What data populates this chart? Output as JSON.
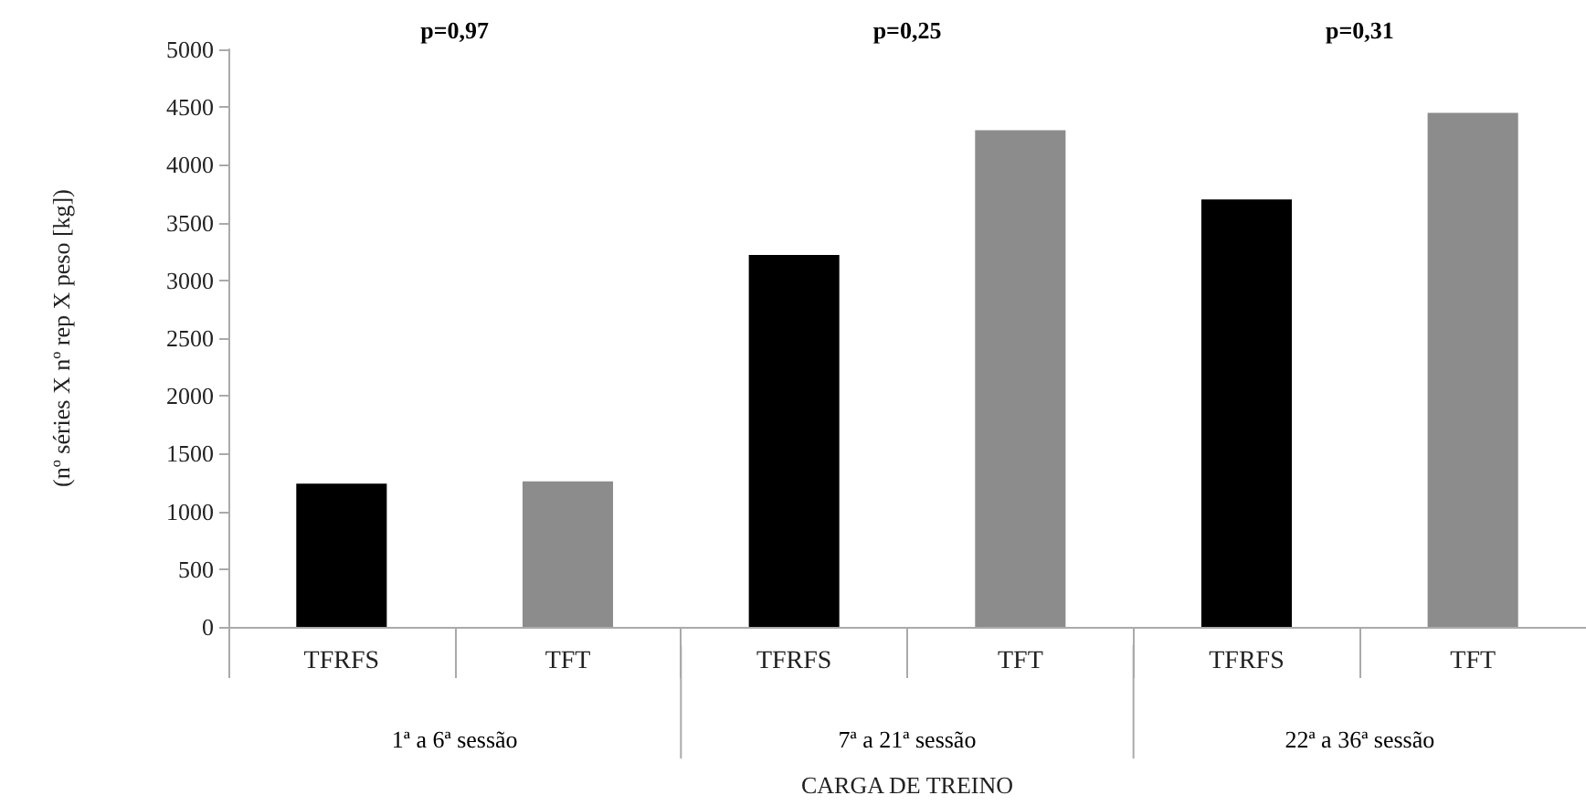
{
  "chart_data": {
    "type": "bar",
    "categories": [
      "TFRFS",
      "TFT",
      "TFRFS",
      "TFT",
      "TFRFS",
      "TFT"
    ],
    "values": [
      1240,
      1260,
      3220,
      4300,
      3700,
      4450
    ],
    "colors": [
      "#000000",
      "#8c8c8c",
      "#000000",
      "#8c8c8c",
      "#000000",
      "#8c8c8c"
    ],
    "ylabel": "(nº séries X nº rep X peso [kg])",
    "xlabel": "CARGA DE TREINO",
    "ylim": [
      0,
      5000
    ],
    "yticks": [
      0,
      500,
      1000,
      1500,
      2000,
      2500,
      3000,
      3500,
      4000,
      4500,
      5000
    ],
    "annotations": [
      "p=0,97",
      "p=0,25",
      "p=0,31",
      "1ª a 6ª sessão",
      "7ª a 21ª sessão",
      "22ª a 36ª sessão"
    ],
    "grid": false
  }
}
